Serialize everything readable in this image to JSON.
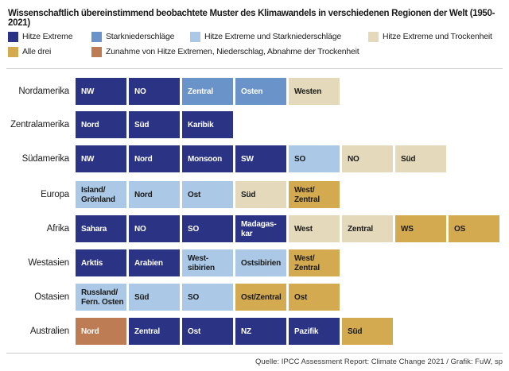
{
  "title": "Wissenschaftlich übereinstimmend beobachtete Muster des Klimawandels in verschiedenen Regionen der Welt (1950-2021)",
  "palette": {
    "hitze": {
      "bg": "#2a3384",
      "fg": "#ffffff"
    },
    "stark": {
      "bg": "#6a93c9",
      "fg": "#ffffff"
    },
    "hitze_stark": {
      "bg": "#abc9e6",
      "fg": "#1a1a1a"
    },
    "hitze_trocken": {
      "bg": "#e5d9bc",
      "fg": "#1a1a1a"
    },
    "alle": {
      "bg": "#d3aa4f",
      "fg": "#1a1a1a"
    },
    "zunahme": {
      "bg": "#be7c54",
      "fg": "#ffffff"
    }
  },
  "legend": {
    "items": [
      {
        "label": "Hitze Extreme",
        "category": "hitze",
        "color": "#2a3384"
      },
      {
        "label": "Starkniederschläge",
        "category": "stark",
        "color": "#6a93c9"
      },
      {
        "label": "Hitze Extreme und Starkniederschläge",
        "category": "hitze_stark",
        "color": "#abc9e6"
      },
      {
        "label": "Hitze Extreme und Trockenheit",
        "category": "hitze_trocken",
        "color": "#e5d9bc"
      },
      {
        "label": "Alle drei",
        "category": "alle",
        "color": "#d3aa4f"
      },
      {
        "label": "Zunahme von Hitze Extremen, Niederschlag, Abnahme der Trockenheit",
        "category": "zunahme",
        "color": "#be7c54"
      }
    ]
  },
  "chart_data": {
    "type": "table",
    "title": "Wissenschaftlich übereinstimmend beobachtete Muster des Klimawandels in verschiedenen Regionen der Welt (1950-2021)",
    "legend_position": "top",
    "categories_legend": {
      "hitze": "Hitze Extreme",
      "stark": "Starkniederschläge",
      "hitze_stark": "Hitze Extreme und Starkniederschläge",
      "hitze_trocken": "Hitze Extreme und Trockenheit",
      "alle": "Alle drei",
      "zunahme": "Zunahme von Hitze Extremen, Niederschlag, Abnahme der Trockenheit"
    },
    "rows": [
      {
        "region": "Nordamerika",
        "cells": [
          {
            "label": "NW",
            "category": "hitze"
          },
          {
            "label": "NO",
            "category": "hitze"
          },
          {
            "label": "Zentral",
            "category": "stark"
          },
          {
            "label": "Osten",
            "category": "stark"
          },
          {
            "label": "Westen",
            "category": "hitze_trocken"
          }
        ]
      },
      {
        "region": "Zentralamerika",
        "cells": [
          {
            "label": "Nord",
            "category": "hitze"
          },
          {
            "label": "Süd",
            "category": "hitze"
          },
          {
            "label": "Karibik",
            "category": "hitze"
          }
        ]
      },
      {
        "region": "Südamerika",
        "cells": [
          {
            "label": "NW",
            "category": "hitze"
          },
          {
            "label": "Nord",
            "category": "hitze"
          },
          {
            "label": "Monsoon",
            "category": "hitze"
          },
          {
            "label": "SW",
            "category": "hitze"
          },
          {
            "label": "SO",
            "category": "hitze_stark"
          },
          {
            "label": "NO",
            "category": "hitze_trocken"
          },
          {
            "label": "Süd",
            "category": "hitze_trocken"
          }
        ]
      },
      {
        "region": "Europa",
        "cells": [
          {
            "label": "Island/\nGrönland",
            "category": "hitze_stark"
          },
          {
            "label": "Nord",
            "category": "hitze_stark"
          },
          {
            "label": "Ost",
            "category": "hitze_stark"
          },
          {
            "label": "Süd",
            "category": "hitze_trocken"
          },
          {
            "label": "West/\nZentral",
            "category": "alle"
          }
        ]
      },
      {
        "region": "Afrika",
        "cells": [
          {
            "label": "Sahara",
            "category": "hitze"
          },
          {
            "label": "NO",
            "category": "hitze"
          },
          {
            "label": "SO",
            "category": "hitze"
          },
          {
            "label": "Madagas-\nkar",
            "category": "hitze"
          },
          {
            "label": "West",
            "category": "hitze_trocken"
          },
          {
            "label": "Zentral",
            "category": "hitze_trocken"
          },
          {
            "label": "WS",
            "category": "alle"
          },
          {
            "label": "OS",
            "category": "alle"
          }
        ]
      },
      {
        "region": "Westasien",
        "cells": [
          {
            "label": "Arktis",
            "category": "hitze"
          },
          {
            "label": "Arabien",
            "category": "hitze"
          },
          {
            "label": "West-\nsibirien",
            "category": "hitze_stark"
          },
          {
            "label": "Ostsibirien",
            "category": "hitze_stark"
          },
          {
            "label": "West/\nZentral",
            "category": "alle"
          }
        ]
      },
      {
        "region": "Ostasien",
        "cells": [
          {
            "label": "Russland/\nFern. Osten",
            "category": "hitze_stark"
          },
          {
            "label": "Süd",
            "category": "hitze_stark"
          },
          {
            "label": "SO",
            "category": "hitze_stark"
          },
          {
            "label": "Ost/Zentral",
            "category": "alle"
          },
          {
            "label": "Ost",
            "category": "alle"
          }
        ]
      },
      {
        "region": "Australien",
        "cells": [
          {
            "label": "Nord",
            "category": "zunahme"
          },
          {
            "label": "Zentral",
            "category": "hitze"
          },
          {
            "label": "Ost",
            "category": "hitze"
          },
          {
            "label": "NZ",
            "category": "hitze"
          },
          {
            "label": "Pazifik",
            "category": "hitze"
          },
          {
            "label": "Süd",
            "category": "alle"
          }
        ]
      }
    ]
  },
  "footer": {
    "source": "Quelle: IPCC Assessment Report: Climate Change 2021 / Grafik: FuW, sp"
  }
}
